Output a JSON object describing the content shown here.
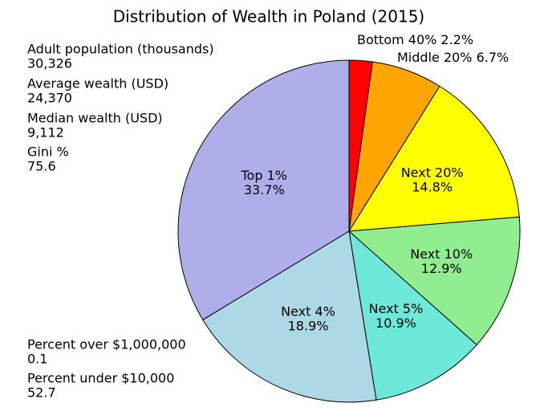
{
  "chart_data": {
    "type": "pie",
    "title": "Distribution of Wealth in Poland (2015)",
    "categories": [
      "Bottom 40%",
      "Middle 20%",
      "Next 20%",
      "Next 10%",
      "Next 5%",
      "Next 4%",
      "Top 1%"
    ],
    "values": [
      2.2,
      6.7,
      14.8,
      12.9,
      10.9,
      18.9,
      33.7
    ],
    "value_labels": [
      "2.2%",
      "6.7%",
      "14.8%",
      "12.9%",
      "10.9%",
      "18.9%",
      "33.7%"
    ],
    "colors": [
      "#ff0000",
      "#ffa500",
      "#ffff00",
      "#90ee90",
      "#6ee8d8",
      "#add8e6",
      "#b0aeea"
    ],
    "stats": [
      {
        "label": "Adult population (thousands)",
        "value": "30,326"
      },
      {
        "label": "Average wealth (USD)",
        "value": "24,370"
      },
      {
        "label": "Median wealth (USD)",
        "value": "9,112"
      },
      {
        "label": "Gini %",
        "value": "75.6"
      },
      {
        "label": "Percent over $1,000,000",
        "value": "0.1"
      },
      {
        "label": "Percent under $10,000",
        "value": "52.7"
      }
    ]
  }
}
